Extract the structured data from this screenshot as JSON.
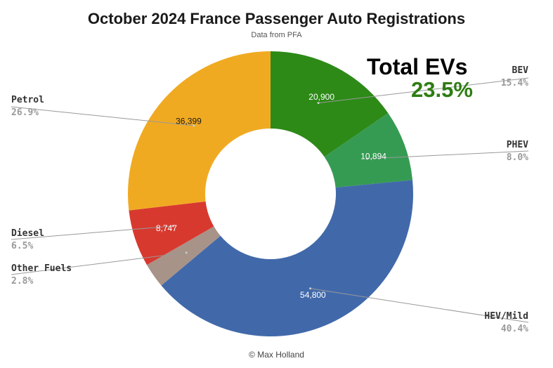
{
  "chart_data": {
    "type": "pie",
    "title": "October 2024 France Passenger Auto Registrations",
    "subtitle": "Data from PFA",
    "headline": "Total EVs",
    "headline_value": "23.5%",
    "credit": "© Max Holland",
    "slices": [
      {
        "name": "BEV",
        "value": 20900,
        "value_label": "20,900",
        "percent_label": "15.4%",
        "color": "#2d8a17",
        "text_color": "#ffffff"
      },
      {
        "name": "PHEV",
        "value": 10894,
        "value_label": "10,894",
        "percent_label": "8.0%",
        "color": "#359b53",
        "text_color": "#ffffff"
      },
      {
        "name": "HEV/Mild",
        "value": 54800,
        "value_label": "54,800",
        "percent_label": "40.4%",
        "color": "#4169aa",
        "text_color": "#ffffff"
      },
      {
        "name": "Other Fuels",
        "value": 3800,
        "value_label": "",
        "percent_label": "2.8%",
        "color": "#a89388",
        "text_color": "#ffffff"
      },
      {
        "name": "Diesel",
        "value": 8747,
        "value_label": "8,747",
        "percent_label": "6.5%",
        "color": "#d8392f",
        "text_color": "#ffffff"
      },
      {
        "name": "Petrol",
        "value": 36399,
        "value_label": "36,399",
        "percent_label": "26.9%",
        "color": "#f0aa22",
        "text_color": "#1a1a1a"
      }
    ]
  }
}
